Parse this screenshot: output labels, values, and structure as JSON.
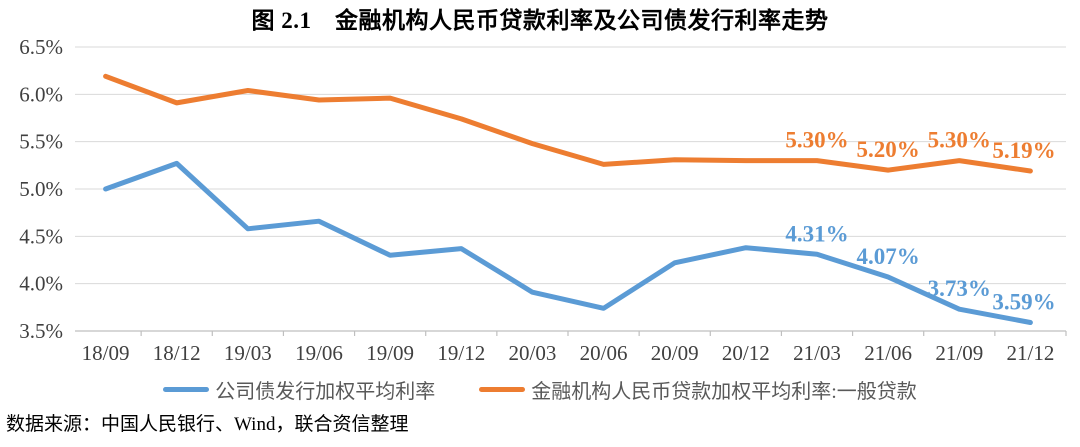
{
  "figure": {
    "title": "图 2.1　金融机构人民币贷款利率及公司债发行利率走势",
    "source_note": "数据来源：中国人民银行、Wind，联合资信整理"
  },
  "colors": {
    "blue": "#5B9BD5",
    "orange": "#ED7D31",
    "gridline": "#D9D9D9",
    "axis_line": "#BFBFBF",
    "axis_text": "#404040",
    "legend_text": "#595959"
  },
  "chart_data": {
    "type": "line",
    "categories": [
      "18/09",
      "18/12",
      "19/03",
      "19/06",
      "19/09",
      "19/12",
      "20/03",
      "20/06",
      "20/09",
      "20/12",
      "21/03",
      "21/06",
      "21/09",
      "21/12"
    ],
    "series": [
      {
        "id": "corporate-bond-rate",
        "name": "公司债发行加权平均利率",
        "color": "#5B9BD5",
        "values": [
          5.0,
          5.27,
          4.58,
          4.66,
          4.3,
          4.37,
          3.91,
          3.74,
          4.22,
          4.38,
          4.31,
          4.07,
          3.73,
          3.59
        ],
        "point_labels": {
          "10": "4.31%",
          "11": "4.07%",
          "12": "3.73%",
          "13": "3.59%"
        }
      },
      {
        "id": "general-loan-rate",
        "name": "金融机构人民币贷款加权平均利率:一般贷款",
        "color": "#ED7D31",
        "values": [
          6.19,
          5.91,
          6.04,
          5.94,
          5.96,
          5.74,
          5.48,
          5.26,
          5.31,
          5.3,
          5.3,
          5.2,
          5.3,
          5.19
        ],
        "point_labels": {
          "10": "5.30%",
          "11": "5.20%",
          "12": "5.30%",
          "13": "5.19%"
        }
      }
    ],
    "ylim": [
      3.5,
      6.5
    ],
    "yticks": [
      3.5,
      4.0,
      4.5,
      5.0,
      5.5,
      6.0,
      6.5
    ],
    "ytick_labels": [
      "3.5%",
      "4.0%",
      "4.5%",
      "5.0%",
      "5.5%",
      "6.0%",
      "6.5%"
    ],
    "grid": true,
    "legend_position": "bottom"
  }
}
